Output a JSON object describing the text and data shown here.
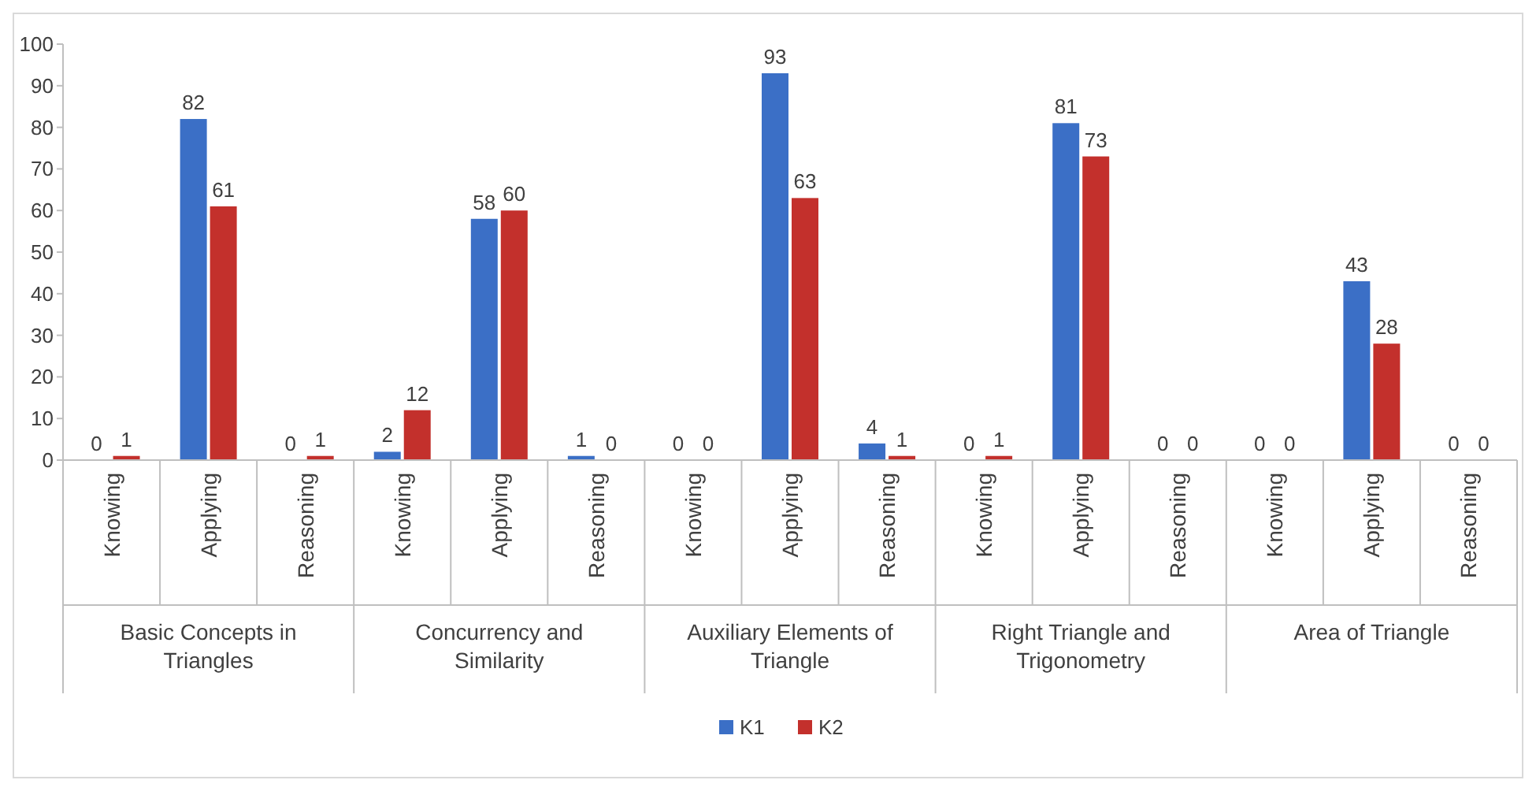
{
  "chart_data": {
    "type": "bar",
    "categories": [
      "Knowing",
      "Applying",
      "Reasoning",
      "Knowing",
      "Applying",
      "Reasoning",
      "Knowing",
      "Applying",
      "Reasoning",
      "Knowing",
      "Applying",
      "Reasoning",
      "Knowing",
      "Applying",
      "Reasoning"
    ],
    "annotations": [
      "Basic Concepts in Triangles",
      "Concurrency and Similarity",
      "Auxiliary Elements of Triangle",
      "Right Triangle and Trigonometry",
      "Area of Triangle"
    ],
    "series": [
      {
        "name": "K1",
        "color": "#3b6fc6",
        "values": [
          0,
          82,
          0,
          2,
          58,
          1,
          0,
          93,
          4,
          0,
          81,
          0,
          0,
          43,
          0
        ]
      },
      {
        "name": "K2",
        "color": "#c3302c",
        "values": [
          1,
          61,
          1,
          12,
          60,
          0,
          0,
          63,
          1,
          1,
          73,
          0,
          0,
          28,
          0
        ]
      }
    ],
    "ylim": [
      0,
      100
    ],
    "yticks": [
      0,
      10,
      20,
      30,
      40,
      50,
      60,
      70,
      80,
      90,
      100
    ],
    "data_labels": true,
    "legend": "bottom",
    "grid": false
  }
}
